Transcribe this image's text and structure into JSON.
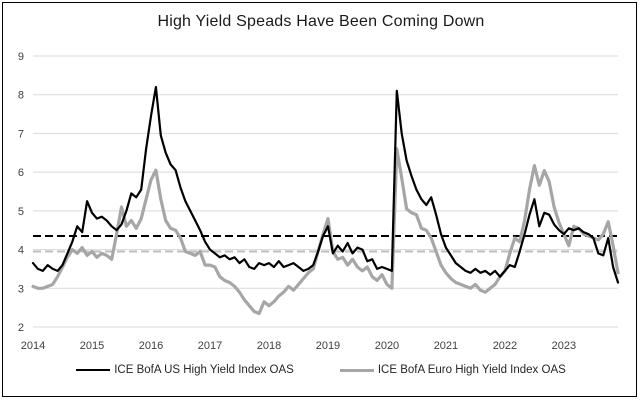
{
  "window": {
    "background": "#ffffff",
    "border_color": "#000000"
  },
  "chart_data": {
    "type": "line",
    "title": "High Yield Speads Have Been Coming Down",
    "x_start_year": 2014,
    "points_per_year": 12,
    "x_tick_labels": [
      "2014",
      "2015",
      "2016",
      "2017",
      "2018",
      "2019",
      "2020",
      "2021",
      "2022",
      "2023"
    ],
    "y_ticks": [
      2,
      3,
      4,
      5,
      6,
      7,
      8,
      9
    ],
    "ylim": [
      2,
      9
    ],
    "grid": "horizontal-only",
    "grid_color": "#d9d9d9",
    "axis_label_color": "#404040",
    "legend_position": "bottom",
    "series": [
      {
        "name": "ICE BofA US High Yield Index OAS",
        "color": "#000000",
        "stroke_width": 2.2,
        "values": [
          3.65,
          3.5,
          3.45,
          3.6,
          3.5,
          3.45,
          3.6,
          3.9,
          4.2,
          4.6,
          4.45,
          5.25,
          4.95,
          4.8,
          4.85,
          4.75,
          4.6,
          4.5,
          4.65,
          5.0,
          5.45,
          5.35,
          5.55,
          6.6,
          7.45,
          8.2,
          6.95,
          6.5,
          6.2,
          6.05,
          5.6,
          5.25,
          5.0,
          4.75,
          4.5,
          4.2,
          4.0,
          3.9,
          3.8,
          3.85,
          3.75,
          3.8,
          3.65,
          3.75,
          3.55,
          3.5,
          3.65,
          3.6,
          3.65,
          3.55,
          3.7,
          3.55,
          3.6,
          3.65,
          3.55,
          3.45,
          3.5,
          3.6,
          3.95,
          4.35,
          4.6,
          3.9,
          4.1,
          3.95,
          4.17,
          3.9,
          4.05,
          4.0,
          3.7,
          3.75,
          3.5,
          3.55,
          3.5,
          3.45,
          8.1,
          7.0,
          6.3,
          5.9,
          5.55,
          5.3,
          5.15,
          5.35,
          4.9,
          4.4,
          4.05,
          3.85,
          3.65,
          3.55,
          3.45,
          3.4,
          3.5,
          3.4,
          3.45,
          3.35,
          3.45,
          3.3,
          3.45,
          3.6,
          3.55,
          3.95,
          4.4,
          4.9,
          5.3,
          4.6,
          4.95,
          4.9,
          4.65,
          4.5,
          4.4,
          4.55,
          4.5,
          4.55,
          4.45,
          4.4,
          4.3,
          3.9,
          3.85,
          4.3,
          3.55,
          3.15
        ]
      },
      {
        "name": "ICE BofA Euro High Yield Index OAS",
        "color": "#a6a6a6",
        "stroke_width": 3.2,
        "values": [
          3.05,
          3.0,
          3.0,
          3.05,
          3.1,
          3.3,
          3.55,
          3.8,
          4.0,
          3.9,
          4.05,
          3.85,
          3.95,
          3.8,
          3.9,
          3.85,
          3.75,
          4.4,
          5.1,
          4.6,
          4.75,
          4.55,
          4.8,
          5.3,
          5.8,
          6.05,
          5.3,
          4.75,
          4.55,
          4.5,
          4.3,
          3.95,
          3.9,
          3.85,
          3.95,
          3.6,
          3.6,
          3.55,
          3.3,
          3.2,
          3.15,
          3.05,
          2.9,
          2.7,
          2.55,
          2.4,
          2.35,
          2.65,
          2.55,
          2.65,
          2.8,
          2.9,
          3.05,
          2.95,
          3.1,
          3.25,
          3.4,
          3.5,
          3.95,
          4.4,
          4.8,
          3.95,
          3.75,
          3.8,
          3.6,
          3.75,
          3.55,
          3.45,
          3.55,
          3.3,
          3.2,
          3.35,
          3.1,
          3.0,
          6.6,
          5.85,
          5.05,
          4.95,
          4.9,
          4.55,
          4.5,
          4.3,
          3.95,
          3.6,
          3.4,
          3.25,
          3.15,
          3.1,
          3.05,
          3.0,
          3.1,
          2.95,
          2.9,
          3.0,
          3.1,
          3.3,
          3.45,
          3.9,
          4.3,
          4.2,
          4.75,
          5.55,
          6.17,
          5.66,
          6.04,
          5.75,
          5.1,
          4.7,
          4.4,
          4.1,
          4.6,
          4.55,
          4.4,
          4.35,
          4.3,
          4.25,
          4.4,
          4.72,
          4.1,
          3.4
        ]
      }
    ],
    "reference_lines": [
      {
        "value": 4.35,
        "color": "#000000",
        "style": "dashed"
      },
      {
        "value": 3.95,
        "color": "#bfbfbf",
        "style": "dashed"
      }
    ]
  },
  "legend": {
    "us_label": "ICE BofA US High Yield Index OAS",
    "euro_label": "ICE BofA Euro High Yield Index OAS"
  }
}
